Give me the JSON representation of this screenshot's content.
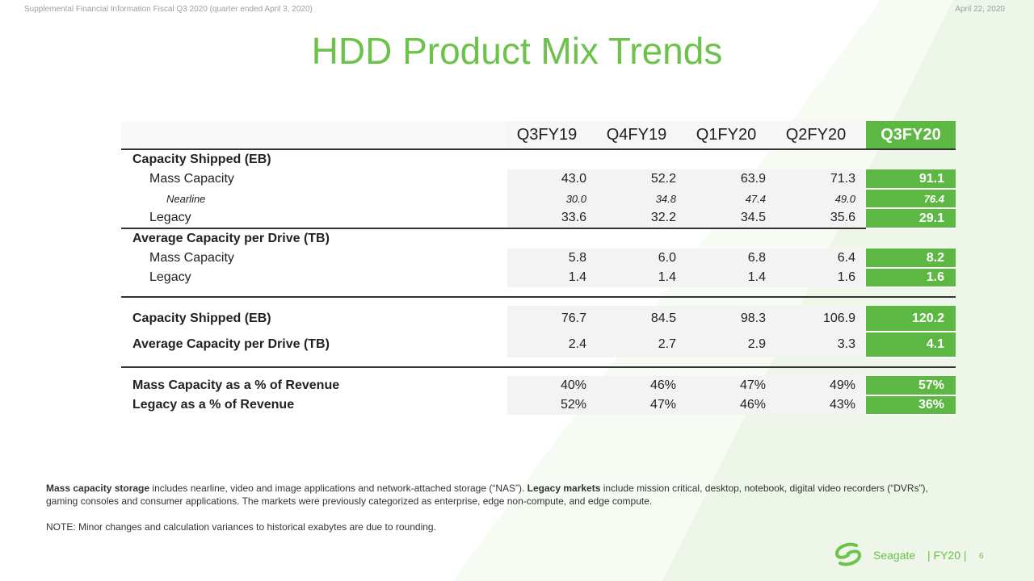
{
  "header": {
    "left": "Supplemental Financial Information Fiscal Q3 2020 (quarter ended April 3, 2020)",
    "right": "April 22, 2020"
  },
  "title": "HDD Product Mix Trends",
  "table": {
    "columns": [
      "Q3FY19",
      "Q4FY19",
      "Q1FY20",
      "Q2FY20",
      "Q3FY20"
    ],
    "sections": {
      "capacity_shipped": "Capacity Shipped (EB)",
      "avg_capacity": "Average Capacity per Drive (TB)"
    },
    "capacity_rows": [
      {
        "label": "Mass Capacity",
        "values": [
          "43.0",
          "52.2",
          "63.9",
          "71.3",
          "91.1"
        ]
      },
      {
        "label": "Nearline",
        "values": [
          "30.0",
          "34.8",
          "47.4",
          "49.0",
          "76.4"
        ]
      },
      {
        "label": "Legacy",
        "values": [
          "33.6",
          "32.2",
          "34.5",
          "35.6",
          "29.1"
        ]
      }
    ],
    "avg_rows": [
      {
        "label": "Mass Capacity",
        "values": [
          "5.8",
          "6.0",
          "6.8",
          "6.4",
          "8.2"
        ]
      },
      {
        "label": "Legacy",
        "values": [
          "1.4",
          "1.4",
          "1.4",
          "1.6",
          "1.6"
        ]
      }
    ],
    "totals": [
      {
        "label": "Capacity Shipped (EB)",
        "values": [
          "76.7",
          "84.5",
          "98.3",
          "106.9",
          "120.2"
        ]
      },
      {
        "label": "Average Capacity per Drive (TB)",
        "values": [
          "2.4",
          "2.7",
          "2.9",
          "3.3",
          "4.1"
        ]
      }
    ],
    "revenue": [
      {
        "label": "Mass Capacity as a % of Revenue",
        "values": [
          "40%",
          "46%",
          "47%",
          "49%",
          "57%"
        ]
      },
      {
        "label": "Legacy as a % of Revenue",
        "values": [
          "52%",
          "47%",
          "46%",
          "43%",
          "36%"
        ]
      }
    ]
  },
  "footnote": {
    "mass_term": "Mass capacity storage",
    "mass_text": " includes nearline, video and image applications and network-attached storage (“NAS”). ",
    "legacy_term": "Legacy markets",
    "legacy_text": " include mission critical, desktop, notebook, digital video recorders (“DVRs”), gaming consoles and consumer applications. The markets were previously categorized as enterprise, edge non-compute, and edge compute."
  },
  "note": "NOTE: Minor changes and calculation variances to historical exabytes are due to rounding.",
  "footer": {
    "brand": "Seagate",
    "fy": "| FY20 |",
    "page": "6"
  },
  "colors": {
    "accent": "#6cc24a",
    "highlight": "#5db843"
  }
}
